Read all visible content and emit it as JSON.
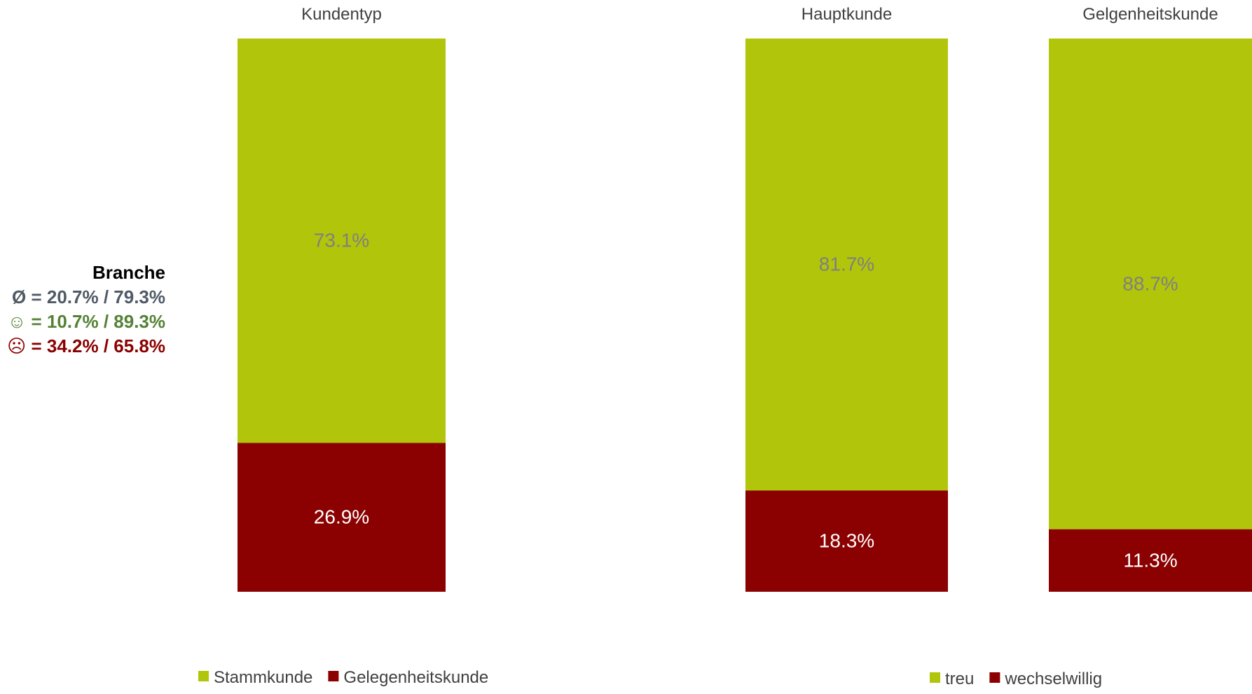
{
  "branche_summary": {
    "title": "Branche",
    "average": "Ø = 20.7% / 79.3%",
    "positive": "☺ = 10.7% / 89.3%",
    "negative": "☹ = 34.2% / 65.8%",
    "colors": {
      "title": "#000000",
      "average": "#505a66",
      "positive": "#548235",
      "negative": "#8b0000"
    }
  },
  "colors": {
    "green": "#b1c50a",
    "red": "#8b0000",
    "label_on_green": "#808080",
    "label_on_red": "#ffffff",
    "heading": "#404040"
  },
  "chart_data": [
    {
      "type": "bar",
      "stacked": true,
      "normalized": true,
      "categories": [
        "Kundentyp"
      ],
      "series": [
        {
          "name": "Gelegenheitskunde",
          "values": [
            26.9
          ],
          "color": "#8b0000",
          "labels": [
            "26.9%"
          ]
        },
        {
          "name": "Stammkunde",
          "values": [
            73.1
          ],
          "color": "#b1c50a",
          "labels": [
            "73.1%"
          ]
        }
      ],
      "ylim": [
        0,
        100
      ],
      "legend": [
        "Stammkunde",
        "Gelegenheitskunde"
      ],
      "legend_position": "bottom",
      "grid": false
    },
    {
      "type": "bar",
      "stacked": true,
      "normalized": true,
      "categories": [
        "Hauptkunde",
        "Gelgenheitskunde"
      ],
      "series": [
        {
          "name": "wechselwillig",
          "values": [
            18.3,
            11.3
          ],
          "color": "#8b0000",
          "labels": [
            "18.3%",
            "11.3%"
          ]
        },
        {
          "name": "treu",
          "values": [
            81.7,
            88.7
          ],
          "color": "#b1c50a",
          "labels": [
            "81.7%",
            "88.7%"
          ]
        }
      ],
      "ylim": [
        0,
        100
      ],
      "legend": [
        "treu",
        "wechselwillig"
      ],
      "legend_position": "bottom",
      "grid": false
    }
  ]
}
